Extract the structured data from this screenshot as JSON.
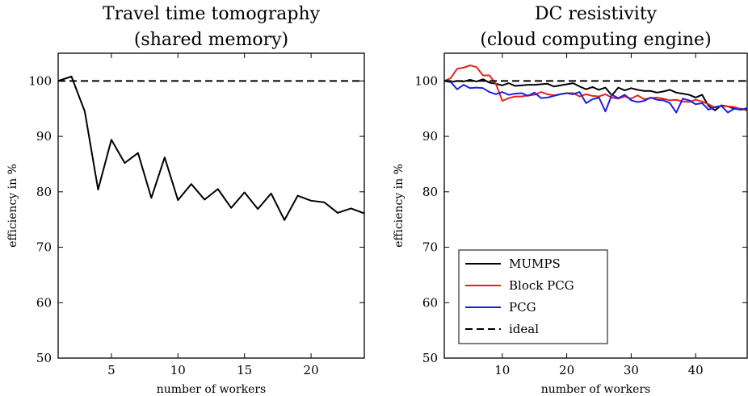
{
  "chart_data": [
    {
      "type": "line",
      "title": "Travel time tomography",
      "subtitle": "(shared memory)",
      "xlabel": "number of workers",
      "ylabel": "efficiency in %",
      "xlim": [
        1,
        24
      ],
      "ylim": [
        50,
        105
      ],
      "xticks": [
        5,
        10,
        15,
        20
      ],
      "yticks": [
        50,
        60,
        70,
        80,
        90,
        100
      ],
      "grid": false,
      "series": [
        {
          "style": "solid",
          "color": "#000000",
          "x": [
            1,
            2,
            3,
            4,
            5,
            6,
            7,
            8,
            9,
            10,
            11,
            12,
            13,
            14,
            15,
            16,
            17,
            18,
            19,
            20,
            21,
            22,
            23,
            24
          ],
          "y": [
            100,
            100.8,
            94.5,
            80.4,
            89.4,
            85.2,
            87.0,
            78.9,
            86.2,
            78.5,
            81.4,
            78.6,
            80.5,
            77.1,
            79.9,
            76.9,
            79.7,
            74.9,
            79.3,
            78.4,
            78.1,
            76.2,
            77.0,
            76.1
          ]
        },
        {
          "style": "dashed",
          "color": "#000000",
          "x": [
            1,
            24
          ],
          "y": [
            100,
            100
          ]
        }
      ]
    },
    {
      "type": "line",
      "title": "DC resistivity",
      "subtitle": "(cloud computing engine)",
      "xlabel": "number of workers",
      "ylabel": "efficiency in %",
      "xlim": [
        1,
        48
      ],
      "ylim": [
        50,
        105
      ],
      "xticks": [
        10,
        20,
        30,
        40
      ],
      "yticks": [
        50,
        60,
        70,
        80,
        90,
        100
      ],
      "grid": false,
      "legend_position": "bottom-left",
      "series": [
        {
          "name": "MUMPS",
          "style": "solid",
          "color": "#000000",
          "x": [
            1,
            2,
            3,
            4,
            5,
            6,
            7,
            8,
            9,
            10,
            11,
            12,
            13,
            14,
            15,
            16,
            17,
            18,
            19,
            20,
            21,
            22,
            23,
            24,
            25,
            26,
            27,
            28,
            29,
            30,
            31,
            32,
            33,
            34,
            35,
            36,
            37,
            38,
            39,
            40,
            41,
            42,
            43,
            44,
            45,
            46,
            47,
            48
          ],
          "y": [
            100,
            99.8,
            100,
            99.9,
            100.2,
            99.9,
            100.3,
            99.7,
            99.5,
            99.2,
            99.6,
            99.1,
            99.2,
            99.3,
            99.3,
            99.4,
            99.5,
            99.0,
            99.2,
            99.4,
            99.6,
            99.0,
            98.5,
            98.9,
            98.4,
            98.8,
            97.4,
            98.8,
            98.3,
            98.7,
            98.4,
            98.2,
            98.2,
            97.9,
            98.1,
            98.4,
            97.9,
            97.7,
            97.5,
            97.0,
            97.5,
            95.5,
            94.7,
            95.6,
            95.4,
            95.0,
            95.0,
            94.7
          ]
        },
        {
          "name": "Block PCG",
          "style": "solid",
          "color": "#e8211b",
          "x": [
            1,
            2,
            3,
            4,
            5,
            6,
            7,
            8,
            9,
            10,
            11,
            12,
            13,
            14,
            15,
            16,
            17,
            18,
            19,
            20,
            21,
            22,
            23,
            24,
            25,
            26,
            27,
            28,
            29,
            30,
            31,
            32,
            33,
            34,
            35,
            36,
            37,
            38,
            39,
            40,
            41,
            42,
            43,
            44,
            45,
            46,
            47,
            48
          ],
          "y": [
            100,
            100.5,
            102.2,
            102.4,
            102.8,
            102.5,
            101.0,
            101.0,
            99.5,
            96.4,
            96.9,
            97.2,
            97.2,
            97.4,
            97.5,
            98.0,
            97.6,
            97.4,
            97.6,
            97.8,
            97.8,
            97.2,
            97.6,
            97.3,
            97.2,
            97.6,
            97.0,
            96.8,
            97.2,
            96.8,
            97.4,
            96.7,
            96.9,
            97.0,
            96.8,
            96.5,
            96.6,
            96.3,
            96.2,
            96.6,
            96.3,
            95.8,
            95.2,
            95.5,
            95.4,
            95.3,
            94.9,
            94.8
          ]
        },
        {
          "name": "PCG",
          "style": "solid",
          "color": "#1f1fe0",
          "x": [
            1,
            2,
            3,
            4,
            5,
            6,
            7,
            8,
            9,
            10,
            11,
            12,
            13,
            14,
            15,
            16,
            17,
            18,
            19,
            20,
            21,
            22,
            23,
            24,
            25,
            26,
            27,
            28,
            29,
            30,
            31,
            32,
            33,
            34,
            35,
            36,
            37,
            38,
            39,
            40,
            41,
            42,
            43,
            44,
            45,
            46,
            47,
            48
          ],
          "y": [
            100,
            99.8,
            98.5,
            99.3,
            98.7,
            98.8,
            98.7,
            98.0,
            97.6,
            98.0,
            97.5,
            97.7,
            97.8,
            97.3,
            97.9,
            96.9,
            97.0,
            97.3,
            97.6,
            97.8,
            97.6,
            98.0,
            96.0,
            96.7,
            97.0,
            94.5,
            97.5,
            96.9,
            97.5,
            96.5,
            96.2,
            96.4,
            97.0,
            96.6,
            96.5,
            96.0,
            94.3,
            96.8,
            96.5,
            95.8,
            96.0,
            94.8,
            95.3,
            95.5,
            94.3,
            95.0,
            94.8,
            95.1
          ]
        },
        {
          "name": "ideal",
          "style": "dashed",
          "color": "#000000",
          "x": [
            1,
            48
          ],
          "y": [
            100,
            100
          ]
        }
      ]
    }
  ]
}
